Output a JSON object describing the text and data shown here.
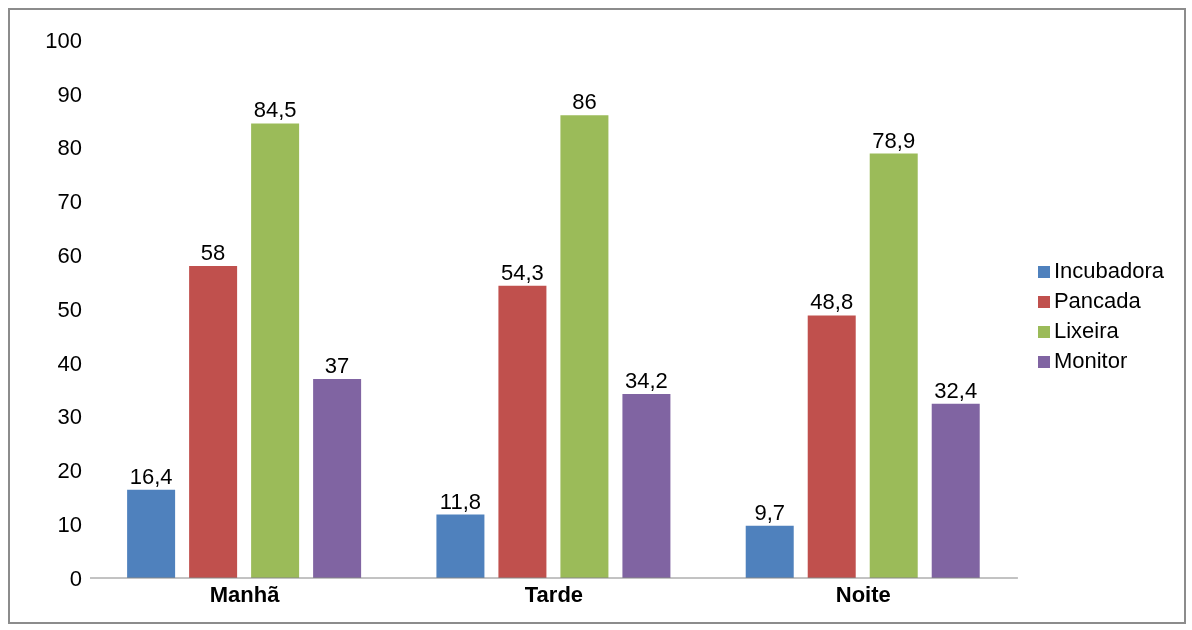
{
  "chart_data": {
    "type": "bar",
    "categories": [
      "Manhã",
      "Tarde",
      "Noite"
    ],
    "series": [
      {
        "name": "Incubadora",
        "color": "#4f81bd",
        "values": [
          16.4,
          11.8,
          9.7
        ],
        "value_labels": [
          "16,4",
          "11,8",
          "9,7"
        ]
      },
      {
        "name": "Pancada",
        "color": "#c0504d",
        "values": [
          58,
          54.3,
          48.8
        ],
        "value_labels": [
          "58",
          "54,3",
          "48,8"
        ]
      },
      {
        "name": "Lixeira",
        "color": "#9bbb59",
        "values": [
          84.5,
          86,
          78.9
        ],
        "value_labels": [
          "84,5",
          "86",
          "78,9"
        ]
      },
      {
        "name": "Monitor",
        "color": "#8064a2",
        "values": [
          37,
          34.2,
          32.4
        ],
        "value_labels": [
          "37",
          "34,2",
          "32,4"
        ]
      }
    ],
    "ylim": [
      0,
      100
    ],
    "yticks": [
      0,
      10,
      20,
      30,
      40,
      50,
      60,
      70,
      80,
      90,
      100
    ],
    "grid": false,
    "legend": "right"
  }
}
